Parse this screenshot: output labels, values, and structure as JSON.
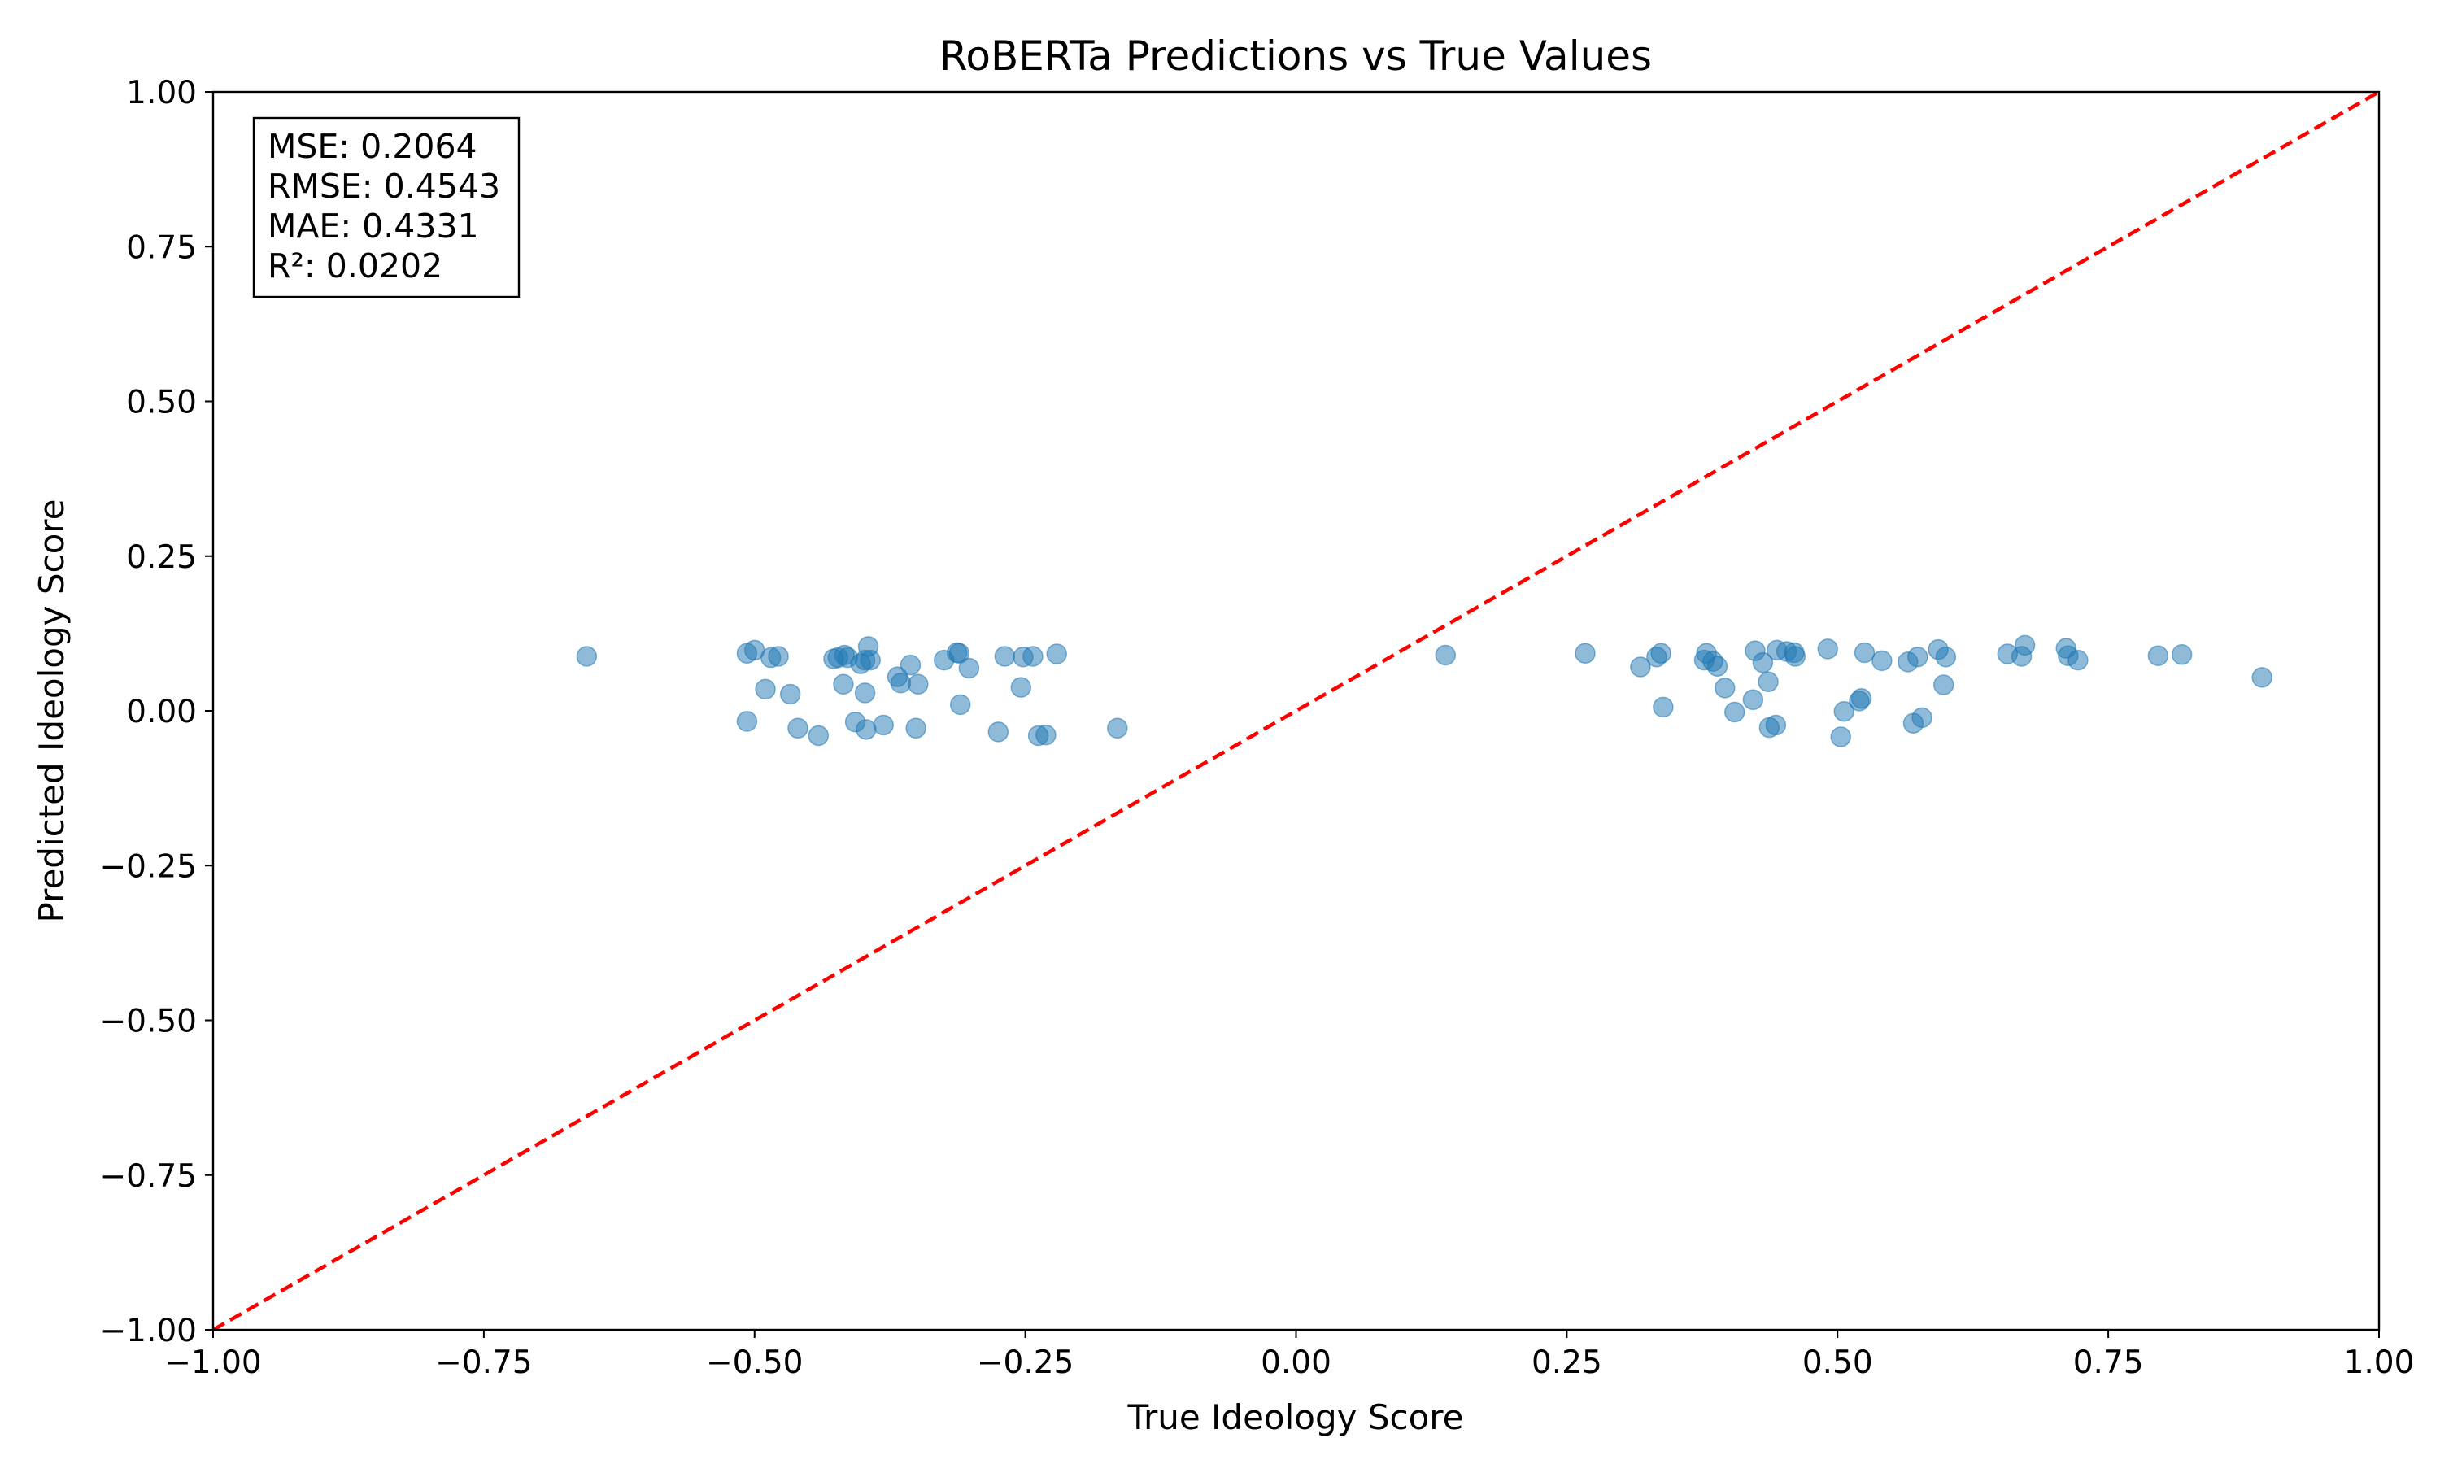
{
  "chart_data": {
    "type": "scatter",
    "title": "RoBERTa Predictions vs True Values",
    "xlabel": "True Ideology Score",
    "ylabel": "Predicted Ideology Score",
    "xlim": [
      -1.0,
      1.0
    ],
    "ylim": [
      -1.0,
      1.0
    ],
    "x_ticks": [
      "−1.00",
      "−0.75",
      "−0.50",
      "−0.25",
      "0.00",
      "0.25",
      "0.50",
      "0.75",
      "1.00"
    ],
    "y_ticks": [
      "−1.00",
      "−0.75",
      "−0.50",
      "−0.25",
      "0.00",
      "0.25",
      "0.50",
      "0.75",
      "1.00"
    ],
    "grid": false,
    "marker_color": "#1f77b4",
    "reference_line": {
      "from": [
        -1.0,
        -1.0
      ],
      "to": [
        1.0,
        1.0
      ],
      "color": "#ff0000",
      "style": "dashed"
    },
    "stats": {
      "mse": "MSE: 0.2064",
      "rmse": "RMSE: 0.4543",
      "mae": "MAE: 0.4331",
      "r2": "R²: 0.0202"
    },
    "points": [
      [
        -0.655,
        0.088
      ],
      [
        -0.507,
        0.093
      ],
      [
        -0.5,
        0.098
      ],
      [
        -0.485,
        0.086
      ],
      [
        -0.478,
        0.088
      ],
      [
        -0.49,
        0.035
      ],
      [
        -0.467,
        0.027
      ],
      [
        -0.507,
        -0.017
      ],
      [
        -0.46,
        -0.028
      ],
      [
        -0.441,
        -0.04
      ],
      [
        -0.427,
        0.084
      ],
      [
        -0.423,
        0.086
      ],
      [
        -0.417,
        0.09
      ],
      [
        -0.414,
        0.086
      ],
      [
        -0.402,
        0.076
      ],
      [
        -0.398,
        0.082
      ],
      [
        -0.395,
        0.104
      ],
      [
        -0.393,
        0.082
      ],
      [
        -0.418,
        0.043
      ],
      [
        -0.398,
        0.029
      ],
      [
        -0.407,
        -0.018
      ],
      [
        -0.397,
        -0.03
      ],
      [
        -0.381,
        -0.023
      ],
      [
        -0.368,
        0.055
      ],
      [
        -0.365,
        0.045
      ],
      [
        -0.356,
        0.074
      ],
      [
        -0.349,
        0.043
      ],
      [
        -0.351,
        -0.028
      ],
      [
        -0.325,
        0.082
      ],
      [
        -0.313,
        0.094
      ],
      [
        -0.311,
        0.093
      ],
      [
        -0.302,
        0.069
      ],
      [
        -0.31,
        0.01
      ],
      [
        -0.269,
        0.088
      ],
      [
        -0.252,
        0.087
      ],
      [
        -0.243,
        0.088
      ],
      [
        -0.254,
        0.038
      ],
      [
        -0.275,
        -0.034
      ],
      [
        -0.238,
        -0.04
      ],
      [
        -0.231,
        -0.039
      ],
      [
        -0.221,
        0.092
      ],
      [
        -0.165,
        -0.028
      ],
      [
        0.138,
        0.09
      ],
      [
        0.267,
        0.093
      ],
      [
        0.318,
        0.071
      ],
      [
        0.333,
        0.087
      ],
      [
        0.337,
        0.093
      ],
      [
        0.339,
        0.006
      ],
      [
        0.377,
        0.082
      ],
      [
        0.379,
        0.093
      ],
      [
        0.385,
        0.08
      ],
      [
        0.389,
        0.072
      ],
      [
        0.396,
        0.037
      ],
      [
        0.405,
        -0.002
      ],
      [
        0.422,
        0.018
      ],
      [
        0.424,
        0.097
      ],
      [
        0.431,
        0.078
      ],
      [
        0.436,
        0.047
      ],
      [
        0.437,
        -0.027
      ],
      [
        0.443,
        -0.023
      ],
      [
        0.444,
        0.098
      ],
      [
        0.453,
        0.096
      ],
      [
        0.46,
        0.094
      ],
      [
        0.461,
        0.088
      ],
      [
        0.491,
        0.1
      ],
      [
        0.503,
        -0.042
      ],
      [
        0.506,
        -0.001
      ],
      [
        0.52,
        0.016
      ],
      [
        0.522,
        0.02
      ],
      [
        0.525,
        0.094
      ],
      [
        0.541,
        0.081
      ],
      [
        0.565,
        0.079
      ],
      [
        0.57,
        -0.02
      ],
      [
        0.574,
        0.087
      ],
      [
        0.578,
        -0.011
      ],
      [
        0.593,
        0.099
      ],
      [
        0.598,
        0.042
      ],
      [
        0.6,
        0.087
      ],
      [
        0.657,
        0.092
      ],
      [
        0.67,
        0.088
      ],
      [
        0.673,
        0.106
      ],
      [
        0.711,
        0.101
      ],
      [
        0.713,
        0.089
      ],
      [
        0.722,
        0.082
      ],
      [
        0.796,
        0.089
      ],
      [
        0.818,
        0.091
      ],
      [
        0.892,
        0.054
      ]
    ]
  }
}
